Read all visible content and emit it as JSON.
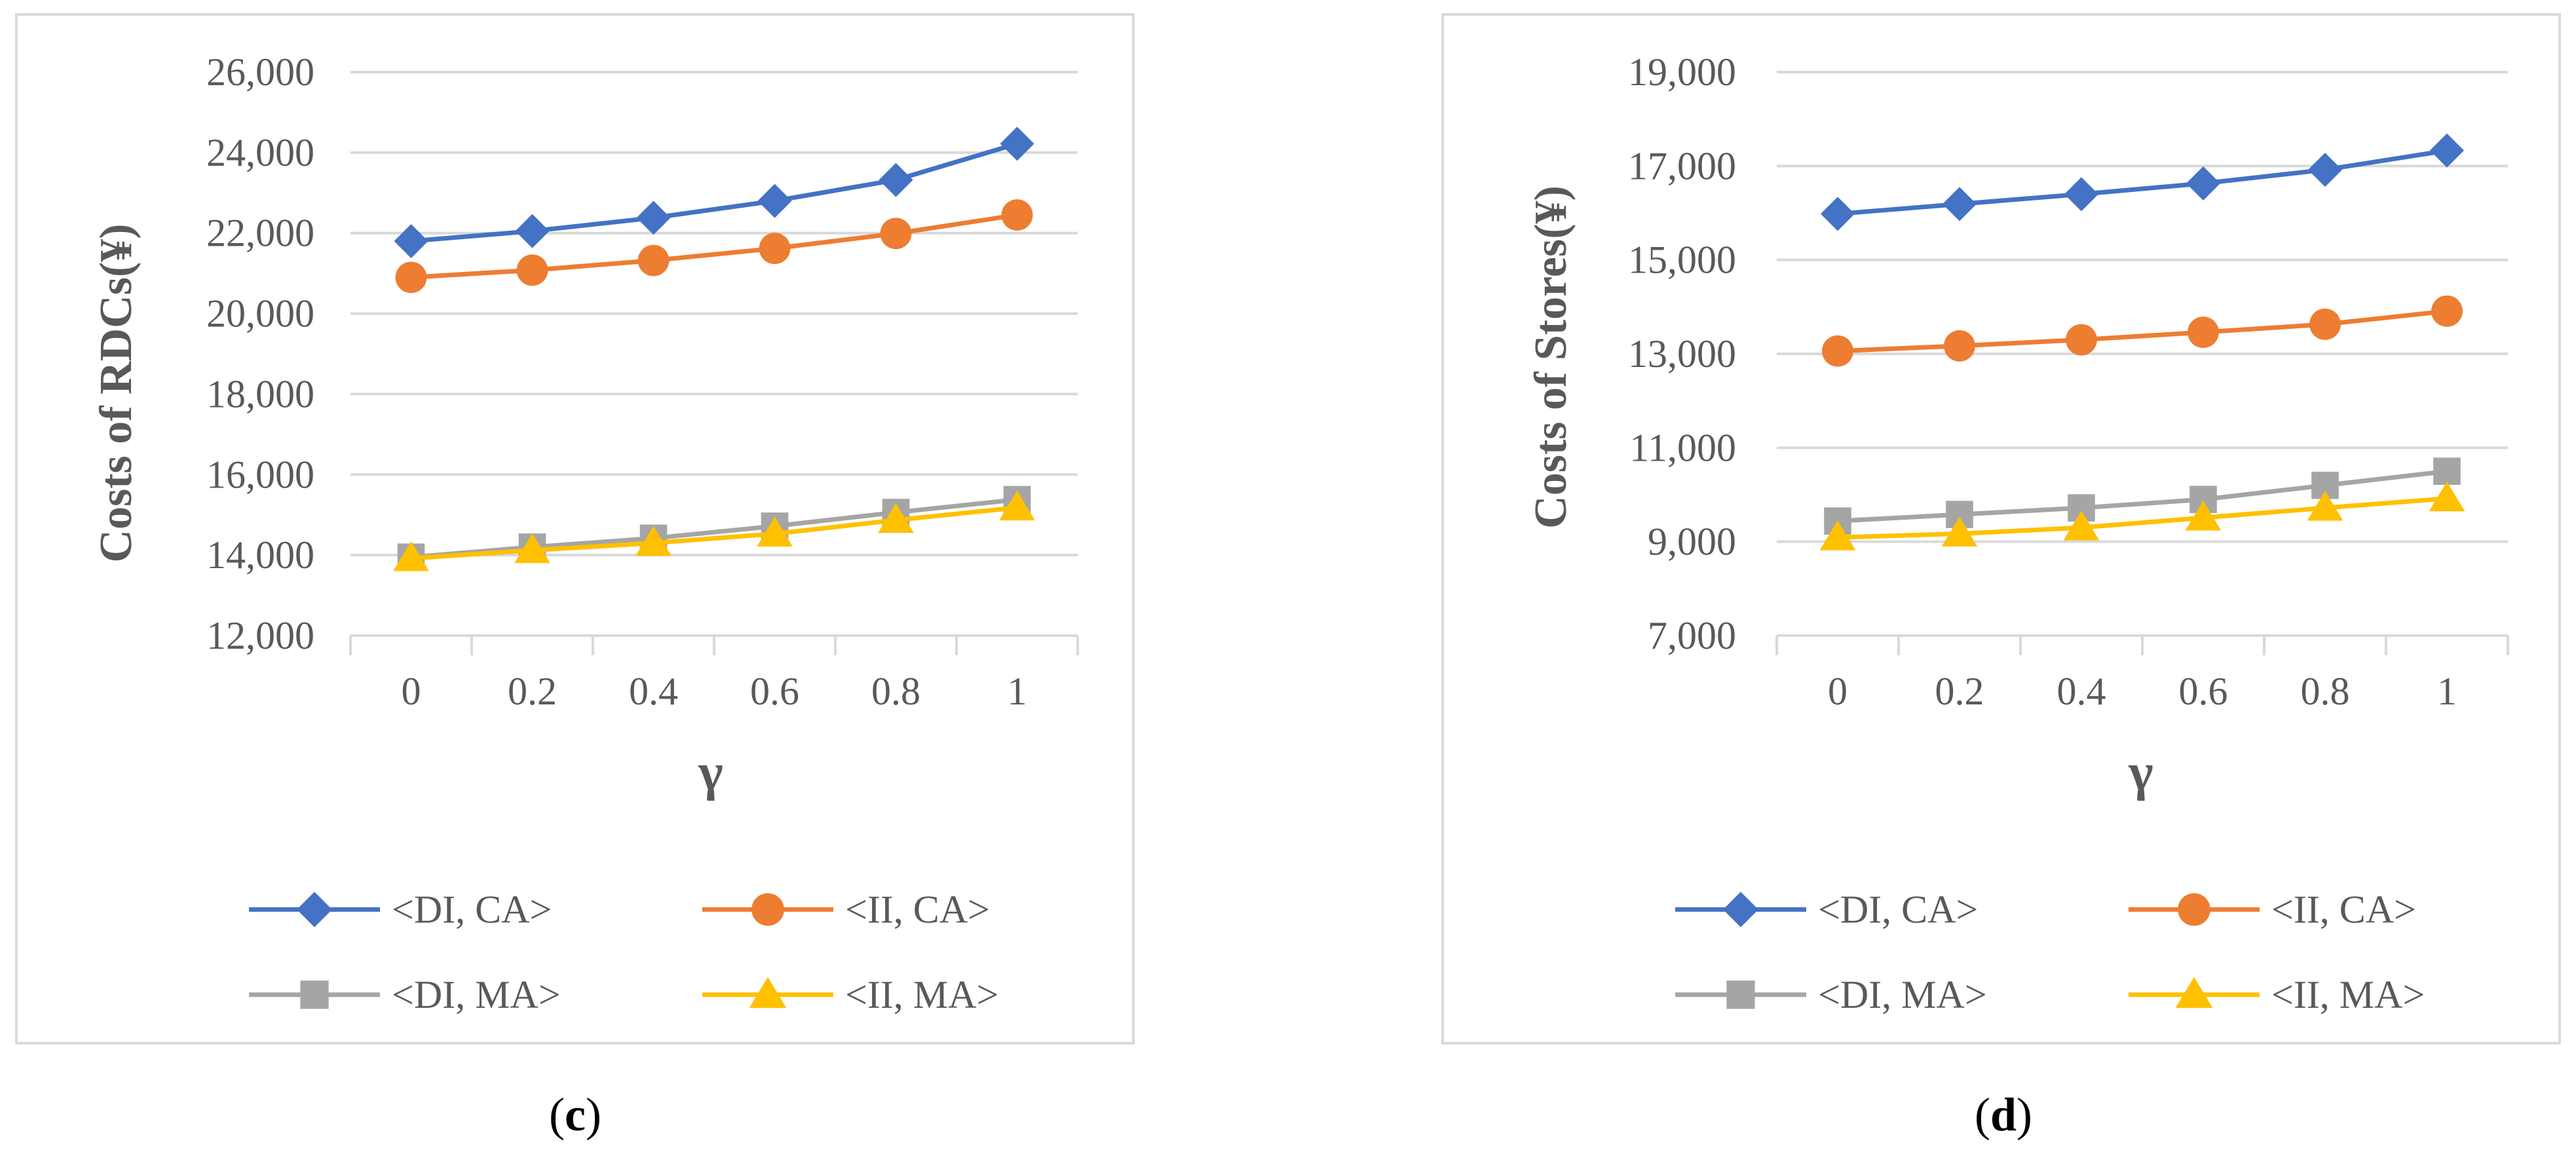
{
  "colors": {
    "grid": "#d9d9d9",
    "frame": "#d9d9d9",
    "text": "#595959",
    "series": {
      "di_ca": "#4472c4",
      "ii_ca": "#ed7d31",
      "di_ma": "#a5a5a5",
      "ii_ma": "#ffc000"
    }
  },
  "chart_data": [
    {
      "type": "line",
      "panel_caption": {
        "open": "(",
        "letter": "c",
        "close": ")"
      },
      "xlabel": "γ",
      "ylabel": "Costs of RDCs(¥)",
      "categories": [
        "0",
        "0.2",
        "0.4",
        "0.6",
        "0.8",
        "1"
      ],
      "ylim": [
        12000,
        26000
      ],
      "yticks": [
        12000,
        14000,
        16000,
        18000,
        20000,
        22000,
        24000,
        26000
      ],
      "ytick_labels": [
        "12,000",
        "14,000",
        "16,000",
        "18,000",
        "20,000",
        "22,000",
        "24,000",
        "26,000"
      ],
      "grid": true,
      "legend_position": "bottom",
      "series": [
        {
          "key": "di_ca",
          "name": "<DI, CA>",
          "marker": "diamond",
          "values": [
            21800,
            22050,
            22380,
            22800,
            23320,
            24220
          ]
        },
        {
          "key": "ii_ca",
          "name": "<II, CA>",
          "marker": "circle",
          "values": [
            20900,
            21080,
            21320,
            21620,
            21990,
            22450
          ]
        },
        {
          "key": "di_ma",
          "name": "<DI, MA>",
          "marker": "square",
          "values": [
            13950,
            14200,
            14420,
            14720,
            15060,
            15380
          ]
        },
        {
          "key": "ii_ma",
          "name": "<II, MA>",
          "marker": "triangle",
          "values": [
            13920,
            14120,
            14300,
            14530,
            14870,
            15180
          ]
        }
      ]
    },
    {
      "type": "line",
      "panel_caption": {
        "open": "(",
        "letter": "d",
        "close": ")"
      },
      "xlabel": "γ",
      "ylabel": "Costs of Stores(¥)",
      "categories": [
        "0",
        "0.2",
        "0.4",
        "0.6",
        "0.8",
        "1"
      ],
      "ylim": [
        7000,
        19000
      ],
      "yticks": [
        7000,
        9000,
        11000,
        13000,
        15000,
        17000,
        19000
      ],
      "ytick_labels": [
        "7,000",
        "9,000",
        "11,000",
        "13,000",
        "15,000",
        "17,000",
        "19,000"
      ],
      "grid": true,
      "legend_position": "bottom",
      "series": [
        {
          "key": "di_ca",
          "name": "<DI, CA>",
          "marker": "diamond",
          "values": [
            15980,
            16190,
            16400,
            16630,
            16920,
            17330
          ]
        },
        {
          "key": "ii_ca",
          "name": "<II, CA>",
          "marker": "circle",
          "values": [
            13060,
            13170,
            13300,
            13460,
            13630,
            13910
          ]
        },
        {
          "key": "di_ma",
          "name": "<DI, MA>",
          "marker": "square",
          "values": [
            9440,
            9580,
            9720,
            9900,
            10200,
            10500
          ]
        },
        {
          "key": "ii_ma",
          "name": "<II, MA>",
          "marker": "triangle",
          "values": [
            9090,
            9170,
            9300,
            9510,
            9720,
            9920
          ]
        }
      ]
    }
  ]
}
